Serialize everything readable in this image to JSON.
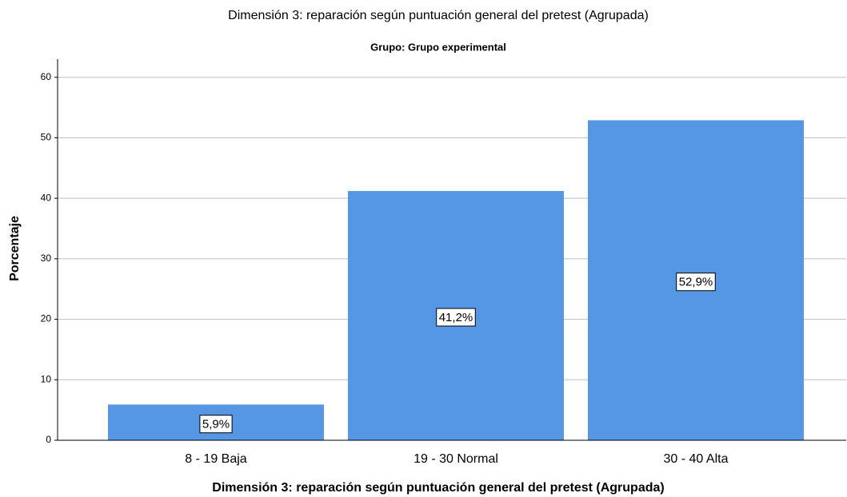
{
  "chart_data": {
    "type": "bar",
    "title": "Dimensión 3: reparación según puntuación general del pretest (Agrupada)",
    "subtitle": "Grupo: Grupo experimental",
    "x_label": "Dimensión 3: reparación según puntuación general del pretest (Agrupada)",
    "y_label": "Porcentaje",
    "categories": [
      "8 - 19 Baja",
      "19 - 30 Normal",
      "30 - 40 Alta"
    ],
    "values": [
      5.9,
      41.2,
      52.9
    ],
    "value_labels": [
      "5,9%",
      "41,2%",
      "52,9%"
    ],
    "color": "#5597e5",
    "ylim": [
      0,
      63
    ],
    "yticks": [
      0,
      10,
      20,
      30,
      40,
      50,
      60
    ],
    "grid": true
  }
}
